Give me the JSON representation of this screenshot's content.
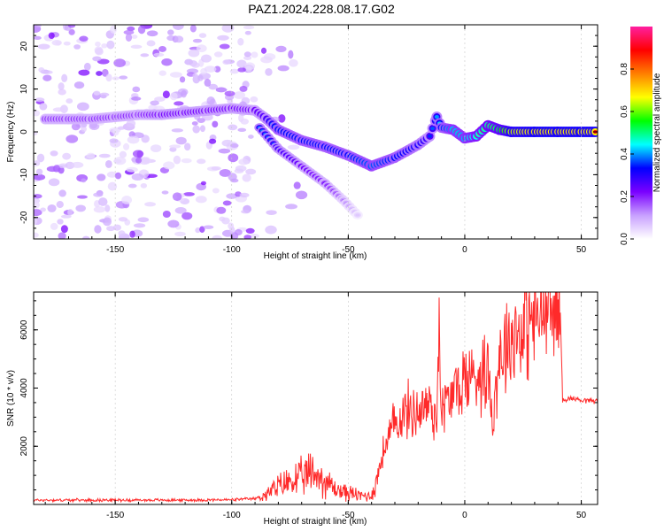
{
  "title": "PAZ1.2024.228.08.17.G02",
  "chart_data": [
    {
      "type": "heatmap",
      "xlabel": "Height of straight line (km)",
      "ylabel": "Frequency (Hz)",
      "xlim": [
        -185,
        57
      ],
      "ylim": [
        -25,
        25
      ],
      "xticks": [
        -150,
        -100,
        -50,
        0,
        50
      ],
      "yticks": [
        -20,
        -10,
        0,
        10,
        20
      ],
      "colorbar": {
        "label": "Normalized spectral amplitude",
        "range": [
          0,
          1
        ],
        "ticks": [
          "0.0",
          "0.2",
          "0.4",
          "0.6",
          "0.8"
        ],
        "colormap": [
          "#ffffff",
          "#c8a0ff",
          "#7a00ff",
          "#0000ff",
          "#00ffff",
          "#00ff00",
          "#ffff00",
          "#ff7f00",
          "#ff0000",
          "#ff1fa0"
        ]
      },
      "ridge": {
        "x": [
          -180,
          -170,
          -160,
          -150,
          -140,
          -130,
          -120,
          -110,
          -100,
          -90,
          -85,
          -80,
          -70,
          -60,
          -50,
          -40,
          -30,
          -20,
          -15,
          -12,
          -10,
          -5,
          0,
          5,
          10,
          15,
          20,
          30,
          40,
          50,
          57
        ],
        "frequency": [
          3,
          3,
          3,
          3.5,
          4,
          4,
          4.5,
          5,
          5.5,
          5,
          3,
          0.5,
          -2,
          -3.5,
          -5.5,
          -8,
          -6,
          -3,
          -1,
          3.5,
          1,
          0.5,
          -1.5,
          -1,
          1.5,
          0.5,
          0,
          0,
          0,
          0,
          0
        ],
        "amplitude": [
          0.25,
          0.25,
          0.25,
          0.25,
          0.25,
          0.3,
          0.3,
          0.3,
          0.3,
          0.3,
          0.35,
          0.45,
          0.45,
          0.45,
          0.45,
          0.5,
          0.45,
          0.4,
          0.35,
          0.4,
          0.45,
          0.55,
          0.55,
          0.6,
          0.65,
          0.7,
          0.85,
          0.9,
          0.9,
          0.9,
          0.9
        ]
      },
      "secondary_ridge": {
        "x": [
          -88,
          -80,
          -70,
          -60,
          -52,
          -45
        ],
        "frequency": [
          1,
          -4,
          -8,
          -12,
          -16,
          -20
        ],
        "amplitude": [
          0.4,
          0.35,
          0.3,
          0.25,
          0.15,
          0.05
        ]
      }
    },
    {
      "type": "line",
      "xlabel": "Height of straight line (km)",
      "ylabel": "SNR (10 * v/v)",
      "xlim": [
        -185,
        57
      ],
      "ylim": [
        0,
        7300
      ],
      "xticks": [
        -150,
        -100,
        -50,
        0,
        50
      ],
      "yticks": [
        2000,
        4000,
        6000
      ],
      "series": [
        {
          "color": "#ff2a2a",
          "x": [
            -185,
            -160,
            -140,
            -120,
            -100,
            -90,
            -85,
            -80,
            -75,
            -70,
            -65,
            -60,
            -55,
            -50,
            -45,
            -40,
            -38,
            -35,
            -30,
            -25,
            -20,
            -15,
            -12,
            -11,
            -10,
            -5,
            0,
            5,
            10,
            12,
            15,
            20,
            25,
            30,
            35,
            40,
            41,
            42,
            45,
            50,
            57
          ],
          "y": [
            150,
            150,
            150,
            150,
            160,
            200,
            350,
            600,
            800,
            900,
            1100,
            800,
            500,
            400,
            300,
            300,
            800,
            1800,
            2800,
            3200,
            3200,
            3500,
            2800,
            6700,
            3200,
            3800,
            4300,
            4500,
            4700,
            3000,
            5200,
            5800,
            6100,
            6400,
            6600,
            6650,
            6600,
            3600,
            3650,
            3600,
            3550
          ]
        }
      ]
    }
  ]
}
